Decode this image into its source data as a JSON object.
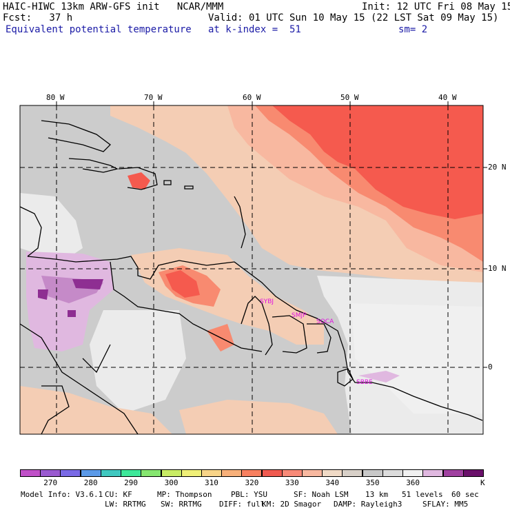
{
  "header": {
    "title": "HAIC-HIWC 13km ARW-GFS init   NCAR/MMM",
    "init": "Init: 12 UTC Fri 08 May 15",
    "fcst": "Fcst:   37 h",
    "valid": "Valid: 01 UTC Sun 10 May 15 (22 LST Sat 09 May 15)",
    "field": "Equivalent potential temperature",
    "level": "at k-index =  51",
    "smooth": "sm= 2"
  },
  "axes": {
    "lon_labels": [
      "80 W",
      "70 W",
      "60 W",
      "50 W",
      "40 W"
    ],
    "lat_labels": [
      "20 N",
      "10 N",
      "0"
    ]
  },
  "sites": [
    "SYBJ",
    "SMJP",
    "SOCA",
    "SBBE"
  ],
  "colorbar": {
    "colors": [
      "#c050c8",
      "#9a5ad0",
      "#7a6ae6",
      "#5b9ae8",
      "#40c8c0",
      "#3ee89a",
      "#86e670",
      "#c8ec64",
      "#f0f078",
      "#f8d488",
      "#f8b07a",
      "#f88060",
      "#f05a50",
      "#f88a78",
      "#f8b8a0",
      "#f0dac6",
      "#d8d0c8",
      "#c8c8c8",
      "#dcdcdc",
      "#f0f0f0",
      "#e0b8e0",
      "#a040a0",
      "#6a106a"
    ],
    "labels": [
      "270",
      "280",
      "290",
      "300",
      "310",
      "320",
      "330",
      "340",
      "350",
      "360"
    ],
    "unit": "K"
  },
  "footer": {
    "line1": [
      "Model Info: V3.6.1",
      "CU: KF",
      "MP: Thompson",
      "PBL: YSU",
      "SF: Noah LSM",
      "13 km",
      "51 levels",
      "60 sec"
    ],
    "line2": [
      "LW: RRTMG",
      "SW: RRTMG",
      "DIFF: full",
      "KM: 2D Smagor",
      "DAMP: Rayleigh3",
      "SFLAY: MM5"
    ]
  },
  "colors": {
    "grey": "#cccccc",
    "light_grey": "#ebebeb",
    "salmon": "#f8b8a0",
    "peach": "#f4cdb4",
    "red": "#f55a4e",
    "orange": "#f88a70",
    "lilac": "#e0b8e0",
    "purple": "#a040a0",
    "title_blue": "#1a1aa6"
  }
}
